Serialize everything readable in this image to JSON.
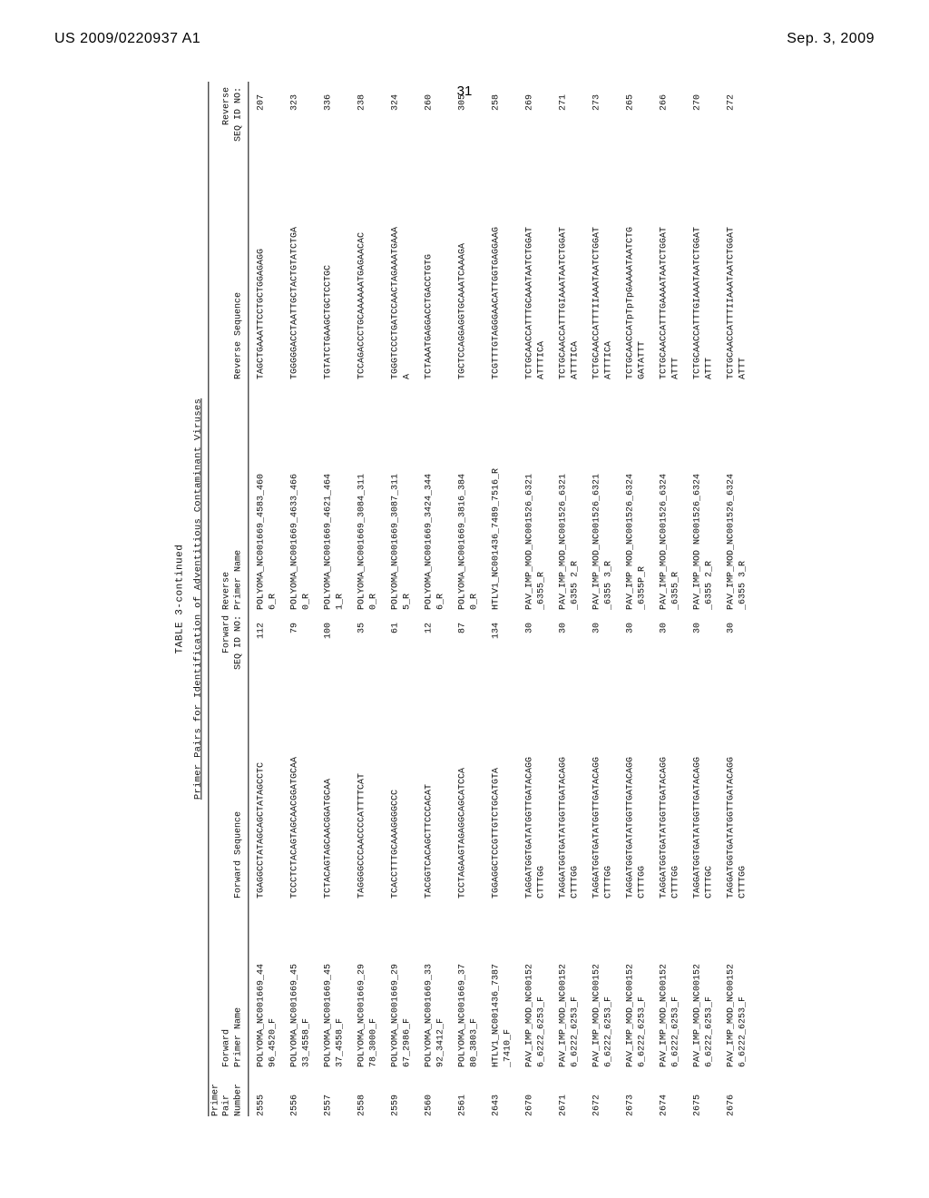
{
  "header": {
    "left": "US 2009/0220937 A1",
    "right": "Sep. 3, 2009"
  },
  "page_number": "31",
  "continued": "TABLE 3-continued",
  "table_title": "Primer Pairs for Identification of Adventitious Contaminant Viruses",
  "columns": {
    "pair_l1": "Primer",
    "pair_l2": "Pair",
    "pair_l3": "Number",
    "fname_l1": "Forward",
    "fname_l2": "Primer Name",
    "fseq": "Forward Sequence",
    "fid_l1": "Forward",
    "fid_l2": "SEQ ID NO:",
    "rname_l1": "Reverse",
    "rname_l2": "Primer Name",
    "rseq": "Reverse Sequence",
    "rid_l1": "Reverse",
    "rid_l2": "SEQ ID NO:"
  },
  "rows": [
    {
      "pair": "2555",
      "fname": "POLYOMA_NC001669_44\n96_4520_F",
      "fseq": "TGAGGCCTATAGCAGCTATAGCCTC",
      "fid": "112",
      "rname": "POLYOMA_NC001669_4583_460\n6_R",
      "rseq": "TAGCTGAAATTCCTGCTGGAGAGG",
      "rid": "207"
    },
    {
      "pair": "2556",
      "fname": "POLYOMA_NC001669_45\n33_4558_F",
      "fseq": "TCCCTCTACAGTAGCAACGGATGCAA",
      "fid": "79",
      "rname": "POLYOMA_NC001669_4633_466\n0_R",
      "rseq": "TGGGGGACCTAATTGCTACTGTATCTGA",
      "rid": "323"
    },
    {
      "pair": "2557",
      "fname": "POLYOMA_NC001669_45\n37_4558_F",
      "fseq": "TCTACAGTAGCAACGGATGCAA",
      "fid": "100",
      "rname": "POLYOMA_NC001669_4621_464\n1_R",
      "rseq": "TGTATCTGAAGCTGCTCCTGC",
      "rid": "336"
    },
    {
      "pair": "2558",
      "fname": "POLYOMA_NC001669_29\n78_3000_F",
      "fseq": "TAGGGGCCCAACCCCATTTTCAT",
      "fid": "35",
      "rname": "POLYOMA_NC001669_3084_311\n0_R",
      "rseq": "TCCAGACCCTGCAAAAAATGAGAACAC",
      "rid": "238"
    },
    {
      "pair": "2559",
      "fname": "POLYOMA_NC001669_29\n67_2986_F",
      "fseq": "TCACCTTTGCAAAGGGGCCC",
      "fid": "61",
      "rname": "POLYOMA_NC001669_3087_311\n5_R",
      "rseq": "TGGGTCCCTGATCCAACTAGAAATGAAA\nA",
      "rid": "324"
    },
    {
      "pair": "2560",
      "fname": "POLYOMA_NC001669_33\n92_3412_F",
      "fseq": "TACGGTCACAGCTTCCCACAT",
      "fid": "12",
      "rname": "POLYOMA_NC001669_3424_344\n6_R",
      "rseq": "TCTAAATGAGGACCTGACCTGTG",
      "rid": "260"
    },
    {
      "pair": "2561",
      "fname": "POLYOMA_NC001669_37\n80_3803_F",
      "fseq": "TCCTAGAAGTAGAGGCAGCATCCA",
      "fid": "87",
      "rname": "POLYOMA_NC001669_3816_384\n0_R",
      "rseq": "TGCTCCAGGAGGTGCAAATCAAAGA",
      "rid": "305"
    },
    {
      "pair": "2643",
      "fname": "HTLV1_NC001436_7387\n_7410_F",
      "fseq": "TGGAGGCTCCGTTGTCTGCATGTA",
      "fid": "134",
      "rname": "HTLV1_NC001436_7489_7516_R",
      "rseq": "TCGTTTGTAGGGAACATTGGTGAGGAAG",
      "rid": "258"
    },
    {
      "pair": "2670",
      "fname": "PAV_IMP_MOD_NC00152\n6_6222_6253_F",
      "fseq": "TAGGATGGTGATATGGTTGATACAGG\nCTTTGG",
      "fid": "30",
      "rname": "PAV_IMP_MOD_NC001526_6321\n_6355_R",
      "rseq": "TCTGCAACCATTTGCAAATAATCTGGAT\nATTTICA",
      "rid": "269"
    },
    {
      "pair": "2671",
      "fname": "PAV_IMP_MOD_NC00152\n6_6222_6253_F",
      "fseq": "TAGGATGGTGATATGGTTGATACAGG\nCTTTGG",
      "fid": "30",
      "rname": "PAV_IMP_MOD_NC001526_6321\n_6355 2_R",
      "rseq": "TCTGCAACCATTTGIAAATAATCTGGAT\nATTTICA",
      "rid": "271"
    },
    {
      "pair": "2672",
      "fname": "PAV_IMP_MOD_NC00152\n6_6222_6253_F",
      "fseq": "TAGGATGGTGATATGGTTGATACAGG\nCTTTGG",
      "fid": "30",
      "rname": "PAV_IMP_MOD_NC001526_6321\n_6355 3_R",
      "rseq": "TCTGCAACCATTTIIAAATAATCTGGAT\nATTTICA",
      "rid": "273"
    },
    {
      "pair": "2673",
      "fname": "PAV_IMP_MOD_NC00152\n6_6222_6253_F",
      "fseq": "TAGGATGGTGATATGGTTGATACAGG\nCTTTGG",
      "fid": "30",
      "rname": "PAV_IMP MOD_NC001526_6324\n_6355P_R",
      "rseq": "TCTGCAACCATpTpTpGAAAATAATCTG\nGATATTT",
      "rid": "265"
    },
    {
      "pair": "2674",
      "fname": "PAV_IMP_MOD_NC00152\n6_6222_6253_F",
      "fseq": "TAGGATGGTGATATGGTTGATACAGG\nCTTTGG",
      "fid": "30",
      "rname": "PAV_IMP_MOD_NC001526_6324\n_6355_R",
      "rseq": "TCTGCAACCATTTGAAAATAATCTGGAT\nATTT",
      "rid": "266"
    },
    {
      "pair": "2675",
      "fname": "PAV_IMP_MOD_NC00152\n6_6222_6253_F",
      "fseq": "TAGGATGGTGATATGGTTGATACAGG\nCTTTGC",
      "fid": "30",
      "rname": "PAV_IMP_MOD NC001526_6324\n_6355 2_R",
      "rseq": "TCTGCAACCATTTGIAAATAATCTGGAT\nATTT",
      "rid": "270"
    },
    {
      "pair": "2676",
      "fname": "PAV_IMP_MOD_NC00152\n6_6222_6253_F",
      "fseq": "TAGGATGGTGATATGGTTGATACAGG\nCTTTGG",
      "fid": "30",
      "rname": "PAV_IMP_MOD_NC001526_6324\n_6355 3_R",
      "rseq": "TCTGCAACCATTTIIAAATAATCTGGAT\nATTT",
      "rid": "272"
    }
  ]
}
